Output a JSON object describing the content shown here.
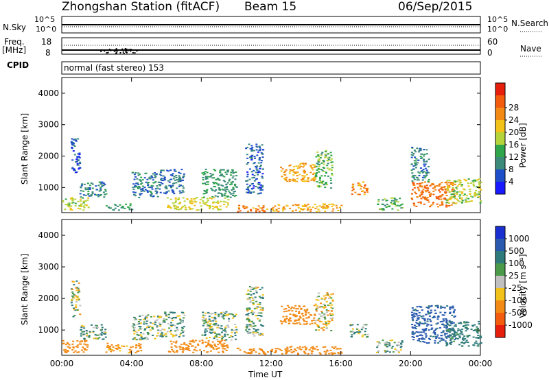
{
  "header": {
    "station": "Zhongshan Station (fitACF)",
    "beam": "Beam 15",
    "date": "06/Sep/2015"
  },
  "top_panels": {
    "nsky_label": "N.Sky",
    "nsky_ticks": [
      "10^5",
      "10^0"
    ],
    "nsearch_label": "N.Search",
    "nsearch_ticks": [
      "10^5",
      "10^0"
    ],
    "freq_label": "Freq.",
    "freq_unit": "[MHz]",
    "freq_ticks": [
      "18",
      "8"
    ],
    "nave_label": "Nave",
    "nave_ticks": [
      "60",
      "0"
    ],
    "cpid_label": "CPID",
    "cpid_text": "normal (fast stereo) 153"
  },
  "colors": {
    "power": [
      "#1a1aff",
      "#1f4fc8",
      "#3b8a7a",
      "#2fa64a",
      "#b5d33a",
      "#f2c21a",
      "#f28a14",
      "#f25c0c",
      "#e61e0c"
    ],
    "velocity": [
      "#1a2fd0",
      "#2a5ab0",
      "#2f7a7a",
      "#4a9a4a",
      "#c0c0c0",
      "#f2c21a",
      "#f28a14",
      "#f25c0c",
      "#e61e0c"
    ]
  },
  "chart_data": [
    {
      "type": "heatmap",
      "title": "Power",
      "xlabel": "Time UT",
      "ylabel": "Slant Range [km]",
      "x_ticks": [
        "00:00",
        "04:00",
        "08:00",
        "12:00",
        "16:00",
        "20:00",
        "00:00"
      ],
      "y_ticks": [
        "1000",
        "2000",
        "3000",
        "4000"
      ],
      "ylim": [
        200,
        4500
      ],
      "colorbar": {
        "label": "Power [dB]",
        "ticks": [
          "4",
          "8",
          "12",
          "16",
          "20",
          "24",
          "28"
        ]
      },
      "regions": [
        {
          "t": [
            0.0,
            1.5
          ],
          "r": [
            300,
            700
          ],
          "v": 18
        },
        {
          "t": [
            0.5,
            1.0
          ],
          "r": [
            1400,
            2600
          ],
          "v": 6
        },
        {
          "t": [
            1.0,
            2.5
          ],
          "r": [
            700,
            1200
          ],
          "v": 10
        },
        {
          "t": [
            2.5,
            4.0
          ],
          "r": [
            300,
            500
          ],
          "v": 12
        },
        {
          "t": [
            4.0,
            5.5
          ],
          "r": [
            700,
            1500
          ],
          "v": 9
        },
        {
          "t": [
            5.5,
            7.0
          ],
          "r": [
            800,
            1600
          ],
          "v": 8
        },
        {
          "t": [
            6.0,
            9.5
          ],
          "r": [
            300,
            700
          ],
          "v": 20
        },
        {
          "t": [
            8.0,
            10.0
          ],
          "r": [
            700,
            1600
          ],
          "v": 12
        },
        {
          "t": [
            10.0,
            12.0
          ],
          "r": [
            250,
            450
          ],
          "v": 27
        },
        {
          "t": [
            10.5,
            11.5
          ],
          "r": [
            800,
            2400
          ],
          "v": 7
        },
        {
          "t": [
            12.5,
            14.5
          ],
          "r": [
            1200,
            1800
          ],
          "v": 24
        },
        {
          "t": [
            12.0,
            16.0
          ],
          "r": [
            250,
            500
          ],
          "v": 24
        },
        {
          "t": [
            14.5,
            15.5
          ],
          "r": [
            1000,
            2200
          ],
          "v": 14
        },
        {
          "t": [
            16.5,
            17.5
          ],
          "r": [
            800,
            1200
          ],
          "v": 26
        },
        {
          "t": [
            18.0,
            19.5
          ],
          "r": [
            300,
            700
          ],
          "v": 14
        },
        {
          "t": [
            20.0,
            22.5
          ],
          "r": [
            400,
            1200
          ],
          "v": 28
        },
        {
          "t": [
            20.0,
            21.0
          ],
          "r": [
            1200,
            2300
          ],
          "v": 10
        },
        {
          "t": [
            22.0,
            24.0
          ],
          "r": [
            500,
            1300
          ],
          "v": 18
        }
      ]
    },
    {
      "type": "heatmap",
      "title": "Velocity",
      "xlabel": "Time UT",
      "ylabel": "Slant Range [km]",
      "x_ticks": [
        "00:00",
        "04:00",
        "08:00",
        "12:00",
        "16:00",
        "20:00",
        "00:00"
      ],
      "y_ticks": [
        "1000",
        "2000",
        "3000",
        "4000"
      ],
      "ylim": [
        200,
        4500
      ],
      "colorbar": {
        "label": "Velocity [m s⁻¹]",
        "ticks": [
          "1000",
          "500",
          "100",
          "25",
          "-25",
          "-100",
          "-500",
          "-1000"
        ]
      },
      "regions": [
        {
          "t": [
            0.0,
            1.5
          ],
          "r": [
            300,
            700
          ],
          "v": -300
        },
        {
          "t": [
            0.5,
            1.0
          ],
          "r": [
            1400,
            2600
          ],
          "v": 0
        },
        {
          "t": [
            1.0,
            2.5
          ],
          "r": [
            700,
            1200
          ],
          "v": 80
        },
        {
          "t": [
            2.5,
            4.5
          ],
          "r": [
            300,
            600
          ],
          "v": -200
        },
        {
          "t": [
            4.0,
            5.5
          ],
          "r": [
            700,
            1500
          ],
          "v": 60
        },
        {
          "t": [
            5.5,
            7.0
          ],
          "r": [
            800,
            1600
          ],
          "v": 50
        },
        {
          "t": [
            6.0,
            9.5
          ],
          "r": [
            300,
            700
          ],
          "v": -300
        },
        {
          "t": [
            8.0,
            10.0
          ],
          "r": [
            700,
            1600
          ],
          "v": 60
        },
        {
          "t": [
            10.0,
            12.0
          ],
          "r": [
            250,
            450
          ],
          "v": -300
        },
        {
          "t": [
            10.5,
            11.5
          ],
          "r": [
            800,
            2400
          ],
          "v": 40
        },
        {
          "t": [
            12.5,
            14.5
          ],
          "r": [
            1200,
            1800
          ],
          "v": -300
        },
        {
          "t": [
            12.0,
            16.0
          ],
          "r": [
            250,
            500
          ],
          "v": -250
        },
        {
          "t": [
            14.5,
            15.5
          ],
          "r": [
            1000,
            2200
          ],
          "v": -50
        },
        {
          "t": [
            16.5,
            17.5
          ],
          "r": [
            800,
            1200
          ],
          "v": 60
        },
        {
          "t": [
            18.0,
            19.5
          ],
          "r": [
            300,
            700
          ],
          "v": 80
        },
        {
          "t": [
            20.0,
            22.5
          ],
          "r": [
            600,
            1800
          ],
          "v": 600
        },
        {
          "t": [
            22.0,
            24.0
          ],
          "r": [
            500,
            1300
          ],
          "v": 200
        }
      ]
    }
  ]
}
